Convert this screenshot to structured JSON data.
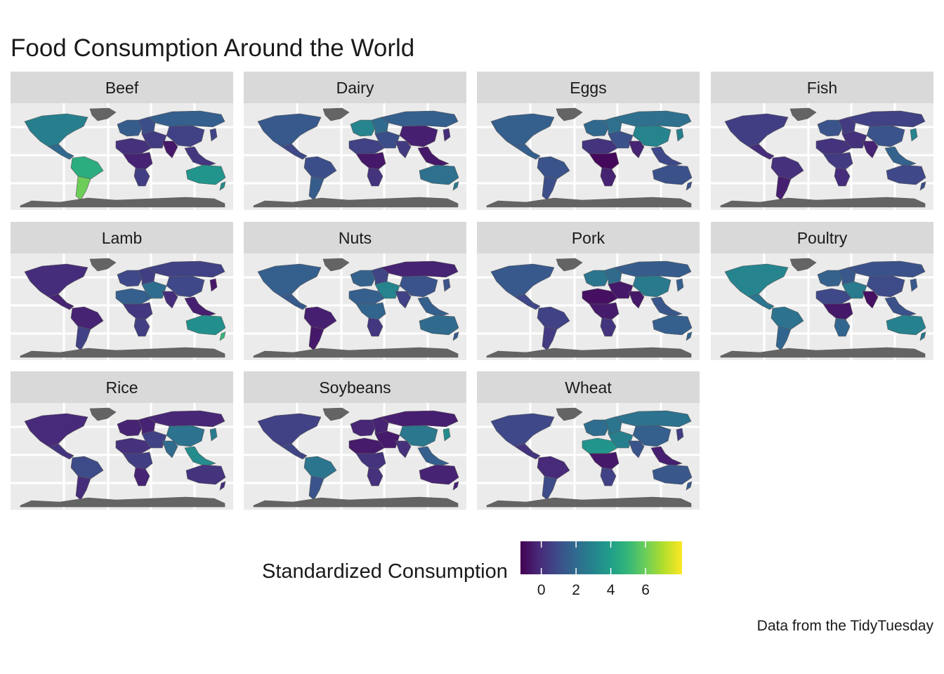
{
  "title": "Food Consumption Around the World",
  "caption": "Data from the TidyTuesday",
  "legend": {
    "title": "Standardized Consumption",
    "min": -1.2,
    "max": 8.1,
    "ticks": [
      "0",
      "2",
      "4",
      "6"
    ],
    "tick_values": [
      0,
      2,
      4,
      6
    ],
    "palette": [
      "#440154",
      "#482878",
      "#3e4a89",
      "#31688e",
      "#26828e",
      "#1f9e89",
      "#35b779",
      "#6ece58",
      "#b5de2b",
      "#fde725"
    ]
  },
  "colors": {
    "panel_bg": "#ebebeb",
    "strip_bg": "#d9d9d9",
    "grid": "#ffffff",
    "no_data": "#646464",
    "border": "#595959"
  },
  "map_regions": [
    "north_america",
    "greenland",
    "central_america",
    "south_america_north",
    "south_america_south",
    "europe_west",
    "europe_east",
    "russia",
    "middle_east",
    "north_africa",
    "central_africa",
    "southern_africa",
    "india",
    "china",
    "southeast_asia",
    "japan",
    "australia",
    "new_zealand",
    "antarctica"
  ],
  "facets": [
    {
      "name": "Beef",
      "values": {
        "north_america": 2.8,
        "central_america": 1.9,
        "south_america_north": 4.6,
        "south_america_south": 6.0,
        "europe_west": 1.5,
        "europe_east": 1.0,
        "russia": 1.6,
        "middle_east": 0.4,
        "north_africa": 0.1,
        "central_africa": -0.3,
        "southern_africa": 0.5,
        "india": -0.6,
        "china": 0.6,
        "southeast_asia": 0.3,
        "japan": 0.7,
        "australia": 3.6,
        "new_zealand": 3.2
      }
    },
    {
      "name": "Dairy",
      "values": {
        "north_america": 1.4,
        "central_america": 0.8,
        "south_america_north": 1.0,
        "south_america_south": 1.5,
        "europe_west": 3.0,
        "europe_east": 2.0,
        "russia": 1.6,
        "middle_east": 1.0,
        "north_africa": 0.6,
        "central_africa": -0.6,
        "southern_africa": 0.2,
        "india": 0.4,
        "china": -0.4,
        "southeast_asia": -0.6,
        "japan": 0.0,
        "australia": 2.2,
        "new_zealand": 2.5
      }
    },
    {
      "name": "Eggs",
      "values": {
        "north_america": 1.6,
        "central_america": 1.6,
        "south_america_north": 1.2,
        "south_america_south": 1.0,
        "europe_west": 1.9,
        "europe_east": 2.2,
        "russia": 2.2,
        "middle_east": 1.1,
        "north_africa": 0.2,
        "central_africa": -1.0,
        "southern_africa": -0.3,
        "india": -0.3,
        "china": 3.0,
        "southeast_asia": 0.8,
        "japan": 2.8,
        "australia": 1.1,
        "new_zealand": 1.2
      }
    },
    {
      "name": "Fish",
      "values": {
        "north_america": 0.5,
        "central_america": 0.0,
        "south_america_north": 0.1,
        "south_america_south": -0.4,
        "europe_west": 1.2,
        "europe_east": 0.4,
        "russia": 0.6,
        "middle_east": 0.1,
        "north_africa": 0.2,
        "central_africa": 0.4,
        "southern_africa": 0.0,
        "india": -0.3,
        "china": 1.2,
        "southeast_asia": 1.7,
        "japan": 3.0,
        "australia": 0.8,
        "new_zealand": 1.0
      }
    },
    {
      "name": "Lamb",
      "values": {
        "north_america": 0.0,
        "central_america": -0.3,
        "south_america_north": -0.3,
        "south_america_south": 0.6,
        "europe_west": 0.8,
        "europe_east": 0.5,
        "russia": 0.6,
        "middle_east": 2.1,
        "north_africa": 1.6,
        "central_africa": 0.3,
        "southern_africa": 0.5,
        "india": 0.0,
        "china": 0.8,
        "southeast_asia": -0.4,
        "japan": -0.6,
        "australia": 3.4,
        "new_zealand": 5.0
      }
    },
    {
      "name": "Nuts",
      "values": {
        "north_america": 1.6,
        "central_america": 1.4,
        "south_america_north": -0.4,
        "south_america_south": -0.6,
        "europe_west": 1.7,
        "europe_east": 0.7,
        "russia": -0.3,
        "middle_east": 3.0,
        "north_africa": 1.6,
        "central_africa": 1.8,
        "southern_africa": 0.3,
        "india": 0.6,
        "china": 1.2,
        "southeast_asia": 1.6,
        "japan": 1.2,
        "australia": 2.0,
        "new_zealand": 1.4
      }
    },
    {
      "name": "Pork",
      "values": {
        "north_america": 1.4,
        "central_america": 0.8,
        "south_america_north": 0.6,
        "south_america_south": 0.4,
        "europe_west": 2.4,
        "europe_east": 2.0,
        "russia": 1.5,
        "middle_east": -0.6,
        "north_africa": -0.8,
        "central_africa": -0.5,
        "southern_africa": 0.2,
        "india": -0.6,
        "china": 2.6,
        "southeast_asia": 1.3,
        "japan": 1.6,
        "australia": 1.6,
        "new_zealand": 1.8
      }
    },
    {
      "name": "Poultry",
      "values": {
        "north_america": 3.0,
        "central_america": 2.4,
        "south_america_north": 2.3,
        "south_america_south": 1.8,
        "europe_west": 1.7,
        "europe_east": 1.3,
        "russia": 1.1,
        "middle_east": 2.6,
        "north_africa": 0.8,
        "central_africa": -0.6,
        "southern_africa": 1.8,
        "india": -0.8,
        "china": 0.9,
        "southeast_asia": 1.1,
        "japan": 1.4,
        "australia": 2.9,
        "new_zealand": 2.4
      }
    },
    {
      "name": "Rice",
      "values": {
        "north_america": -0.1,
        "central_america": 0.2,
        "south_america_north": 0.9,
        "south_america_south": 0.0,
        "europe_west": -0.3,
        "europe_east": -0.3,
        "russia": -0.2,
        "middle_east": 0.6,
        "north_africa": 0.1,
        "central_africa": 0.5,
        "southern_africa": -0.3,
        "india": 2.0,
        "china": 2.3,
        "southeast_asia": 3.3,
        "japan": 2.6,
        "australia": 0.2,
        "new_zealand": 0.0
      }
    },
    {
      "name": "Soybeans",
      "values": {
        "north_america": 0.6,
        "central_america": 0.7,
        "south_america_north": 2.4,
        "south_america_south": 1.2,
        "europe_west": -0.2,
        "europe_east": -0.3,
        "russia": -0.4,
        "middle_east": -0.5,
        "north_africa": -0.5,
        "central_africa": 0.2,
        "southern_africa": 0.1,
        "india": 0.1,
        "china": 2.5,
        "southeast_asia": 1.6,
        "japan": 3.3,
        "australia": -0.3,
        "new_zealand": -0.3
      }
    },
    {
      "name": "Wheat",
      "values": {
        "north_america": 0.8,
        "central_america": 0.2,
        "south_america_north": -0.1,
        "south_america_south": 0.9,
        "europe_west": 2.1,
        "europe_east": 2.4,
        "russia": 2.3,
        "middle_east": 2.8,
        "north_africa": 3.6,
        "central_africa": -0.6,
        "southern_africa": 0.6,
        "india": 1.2,
        "china": 1.6,
        "southeast_asia": -0.4,
        "japan": 0.5,
        "australia": 1.3,
        "new_zealand": 1.4
      }
    }
  ]
}
